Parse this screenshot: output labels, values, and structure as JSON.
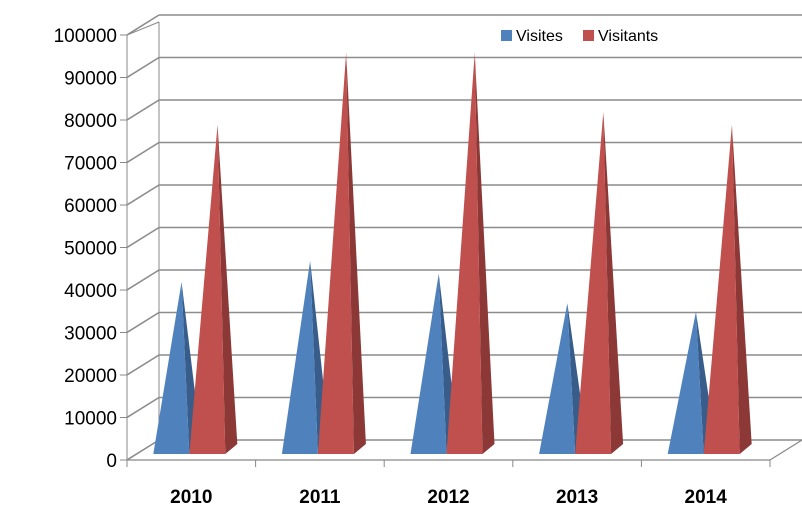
{
  "chart_data": {
    "type": "bar",
    "style": "3d-pyramid",
    "categories": [
      "2010",
      "2011",
      "2012",
      "2013",
      "2014"
    ],
    "series": [
      {
        "name": "Visites",
        "values": [
          40000,
          45000,
          42000,
          35000,
          33000
        ],
        "color": "#4f81bd",
        "side": "#385d8a"
      },
      {
        "name": "Visitants",
        "values": [
          77000,
          94000,
          94000,
          80000,
          77000
        ],
        "color": "#c0504d",
        "side": "#8c3836"
      }
    ],
    "ylim": [
      0,
      100000
    ],
    "yticks": [
      "0",
      "10000",
      "20000",
      "30000",
      "40000",
      "50000",
      "60000",
      "70000",
      "80000",
      "90000",
      "100000"
    ],
    "grid": true,
    "legend": "top-right"
  }
}
